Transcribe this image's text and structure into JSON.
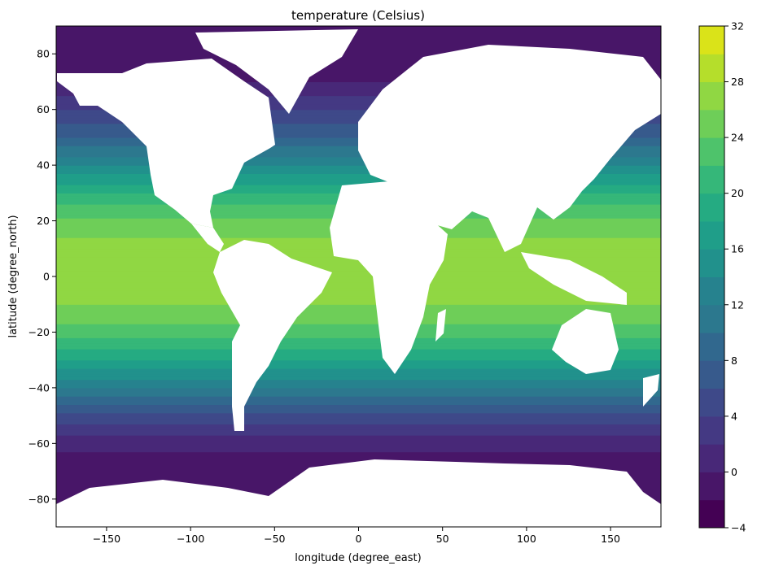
{
  "chart_data": {
    "type": "heatmap",
    "subtype": "filled-contour-map",
    "title": "temperature (Celsius)",
    "xlabel": "longitude (degree_east)",
    "ylabel": "latitude (degree_north)",
    "xlim": [
      -180,
      180
    ],
    "ylim": [
      -90,
      90
    ],
    "xticks": [
      -150,
      -100,
      -50,
      0,
      50,
      100,
      150
    ],
    "xtick_labels": [
      "−150",
      "−100",
      "−50",
      "0",
      "50",
      "100",
      "150"
    ],
    "yticks": [
      -80,
      -60,
      -40,
      -20,
      0,
      20,
      40,
      60,
      80
    ],
    "ytick_labels": [
      "−80",
      "−60",
      "−40",
      "−20",
      "0",
      "20",
      "40",
      "60",
      "80"
    ],
    "grid": false,
    "colormap": "viridis",
    "land_color": "#ffffff",
    "colorbar": {
      "min": -4,
      "max": 32,
      "level_step": 2,
      "ticks": [
        -4,
        0,
        4,
        8,
        12,
        16,
        20,
        24,
        28,
        32
      ],
      "tick_labels": [
        "−4",
        "0",
        "4",
        "8",
        "12",
        "16",
        "20",
        "24",
        "28",
        "32"
      ],
      "colors": [
        "#440154",
        "#481668",
        "#482878",
        "#443983",
        "#3e4989",
        "#375a8c",
        "#31688e",
        "#2c788e",
        "#26828e",
        "#21918c",
        "#1f9e89",
        "#25ab82",
        "#35b779",
        "#4ec36b",
        "#6ece58",
        "#90d743",
        "#b5de2b",
        "#dae319",
        "#fde725"
      ]
    },
    "zonal_mean_temperature": {
      "lat": [
        -90,
        -80,
        -70,
        -60,
        -50,
        -40,
        -30,
        -20,
        -10,
        0,
        10,
        20,
        30,
        40,
        50,
        60,
        70,
        80,
        90
      ],
      "temp": [
        -1.8,
        -1.8,
        -1.2,
        0.5,
        5.5,
        12,
        18,
        23,
        26,
        27,
        27,
        24.5,
        20,
        14,
        8,
        4,
        0,
        -1.5,
        -1.8
      ]
    }
  }
}
